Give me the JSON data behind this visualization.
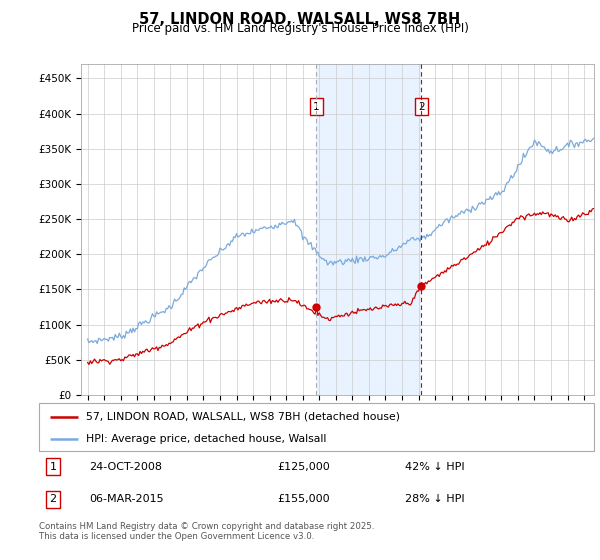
{
  "title": "57, LINDON ROAD, WALSALL, WS8 7BH",
  "subtitle": "Price paid vs. HM Land Registry's House Price Index (HPI)",
  "legend_line1": "57, LINDON ROAD, WALSALL, WS8 7BH (detached house)",
  "legend_line2": "HPI: Average price, detached house, Walsall",
  "sale1_date": "24-OCT-2008",
  "sale1_price": "£125,000",
  "sale1_hpi": "42% ↓ HPI",
  "sale2_date": "06-MAR-2015",
  "sale2_price": "£155,000",
  "sale2_hpi": "28% ↓ HPI",
  "footer": "Contains HM Land Registry data © Crown copyright and database right 2025.\nThis data is licensed under the Open Government Licence v3.0.",
  "line1_color": "#cc0000",
  "line2_color": "#7aaadd",
  "shade_color": "#ddeeff",
  "vline1_color": "#aaaaaa",
  "vline2_color": "#cc0000",
  "sale1_x": 2008.83,
  "sale2_x": 2015.17,
  "ylim_max": 470000,
  "ytick_vals": [
    0,
    50000,
    100000,
    150000,
    200000,
    250000,
    300000,
    350000,
    400000,
    450000
  ],
  "ytick_labels": [
    "£0",
    "£50K",
    "£100K",
    "£150K",
    "£200K",
    "£250K",
    "£300K",
    "£350K",
    "£400K",
    "£450K"
  ],
  "xlim_start": 1994.6,
  "xlim_end": 2025.6
}
